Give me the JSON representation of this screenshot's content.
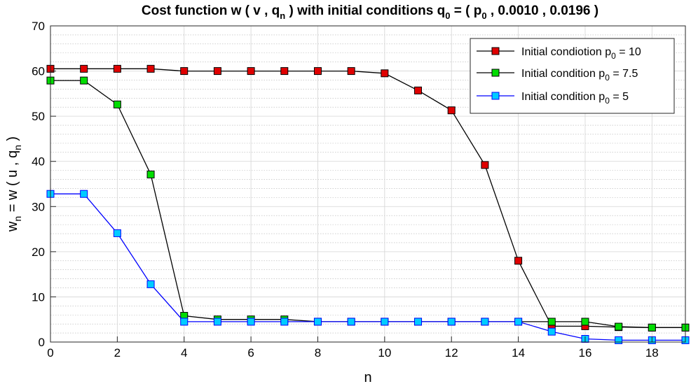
{
  "chart_data": {
    "type": "line",
    "title": {
      "prefix": "Cost function w ( v , q",
      "prefix_sub": "n",
      "middle": " ) with initial conditions q",
      "middle_sub": "0",
      "suffix_a": " = ( p",
      "suffix_sub": "0",
      "suffix_b": " , 0.0010 , 0.0196 )"
    },
    "xlabel": "n",
    "ylabel": {
      "a": "w",
      "a_sub": "n",
      "b": " = w ( u , q",
      "b_sub": "n",
      "c": " )"
    },
    "xlim": [
      0,
      19
    ],
    "ylim": [
      0,
      70
    ],
    "xticks": [
      0,
      2,
      4,
      6,
      8,
      10,
      12,
      14,
      16,
      18
    ],
    "yticks": [
      0,
      10,
      20,
      30,
      40,
      50,
      60,
      70
    ],
    "grid": "major and minor",
    "legend_position": "top-right",
    "x": [
      0,
      1,
      2,
      3,
      4,
      5,
      6,
      7,
      8,
      9,
      10,
      11,
      12,
      13,
      14,
      15,
      16,
      17,
      18,
      19
    ],
    "series": [
      {
        "name": "Initial condiotion p0 = 10",
        "legend_prefix": "Initial condiotion p",
        "legend_sub": "0",
        "legend_suffix": " = 10",
        "line_color": "#000000",
        "marker_color": "#e00000",
        "values": [
          60.5,
          60.5,
          60.5,
          60.5,
          60.0,
          60.0,
          60.0,
          60.0,
          60.0,
          60.0,
          59.5,
          55.7,
          51.3,
          39.2,
          18.0,
          3.5,
          3.5,
          3.3,
          3.2,
          3.2
        ]
      },
      {
        "name": "Initial condition p0 = 7.5",
        "legend_prefix": "Initial condition p",
        "legend_sub": "0",
        "legend_suffix": " = 7.5",
        "line_color": "#000000",
        "marker_color": "#00dd00",
        "values": [
          57.9,
          57.9,
          52.6,
          37.1,
          5.8,
          5.0,
          5.0,
          5.0,
          4.5,
          4.5,
          4.5,
          4.5,
          4.5,
          4.5,
          4.5,
          4.5,
          4.5,
          3.4,
          3.2,
          3.2
        ]
      },
      {
        "name": "Initial condition p0 = 5",
        "legend_prefix": "Initial condition p",
        "legend_sub": "0",
        "legend_suffix": " = 5",
        "line_color": "#0000ff",
        "marker_color": "#00ccff",
        "values": [
          32.8,
          32.8,
          24.1,
          12.8,
          4.5,
          4.5,
          4.5,
          4.5,
          4.5,
          4.5,
          4.5,
          4.5,
          4.5,
          4.5,
          4.5,
          2.3,
          0.7,
          0.4,
          0.4,
          0.4
        ]
      }
    ]
  }
}
